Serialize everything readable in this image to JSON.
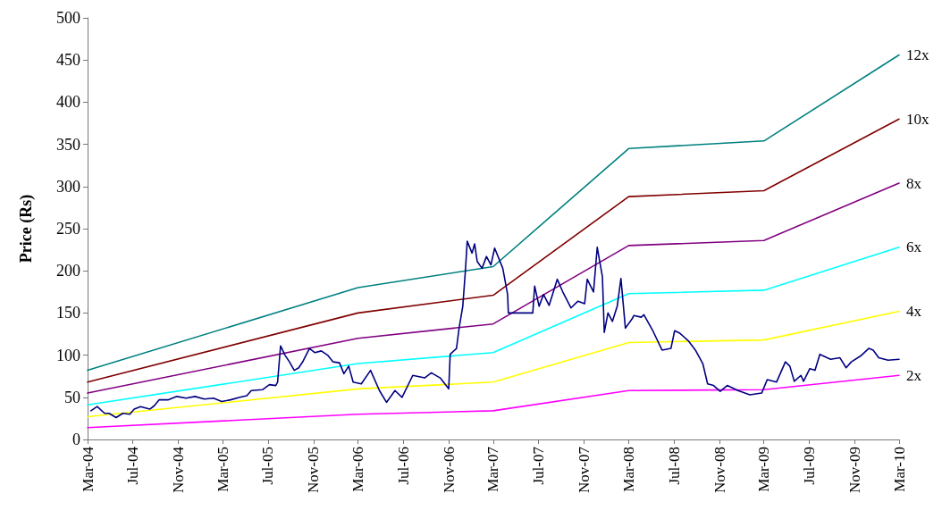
{
  "chart_data": {
    "type": "line",
    "ylabel": "Price (Rs)",
    "xlim": [
      "2004-03",
      "2010-03"
    ],
    "xticks": [
      {
        "value": "2004-03",
        "label": "Mar-04"
      },
      {
        "value": "2004-07",
        "label": "Jul-04"
      },
      {
        "value": "2004-11",
        "label": "Nov-04"
      },
      {
        "value": "2005-03",
        "label": "Mar-05"
      },
      {
        "value": "2005-07",
        "label": "Jul-05"
      },
      {
        "value": "2005-11",
        "label": "Nov-05"
      },
      {
        "value": "2006-03",
        "label": "Mar-06"
      },
      {
        "value": "2006-07",
        "label": "Jul-06"
      },
      {
        "value": "2006-11",
        "label": "Nov-06"
      },
      {
        "value": "2007-03",
        "label": "Mar-07"
      },
      {
        "value": "2007-07",
        "label": "Jul-07"
      },
      {
        "value": "2007-11",
        "label": "Nov-07"
      },
      {
        "value": "2008-03",
        "label": "Mar-08"
      },
      {
        "value": "2008-07",
        "label": "Jul-08"
      },
      {
        "value": "2008-11",
        "label": "Nov-08"
      },
      {
        "value": "2009-03",
        "label": "Mar-09"
      },
      {
        "value": "2009-07",
        "label": "Jul-09"
      },
      {
        "value": "2009-11",
        "label": "Nov-09"
      },
      {
        "value": "2010-03",
        "label": "Mar-10"
      }
    ],
    "ylim": [
      0,
      500
    ],
    "yticks": [
      0,
      50,
      100,
      150,
      200,
      250,
      300,
      350,
      400,
      450,
      500
    ],
    "grid": false,
    "legend": false,
    "marker": "none",
    "line_style": "solid",
    "series": [
      {
        "name": "12x",
        "color": "#008080",
        "x": [
          "2004-03",
          "2006-03",
          "2007-03",
          "2008-03",
          "2009-03",
          "2010-03"
        ],
        "values": [
          82,
          180,
          205,
          345,
          354,
          456
        ]
      },
      {
        "name": "10x",
        "color": "#800000",
        "x": [
          "2004-03",
          "2006-03",
          "2007-03",
          "2008-03",
          "2009-03",
          "2010-03"
        ],
        "values": [
          68,
          150,
          171,
          288,
          295,
          380
        ]
      },
      {
        "name": "8x",
        "color": "#800080",
        "x": [
          "2004-03",
          "2006-03",
          "2007-03",
          "2008-03",
          "2009-03",
          "2010-03"
        ],
        "values": [
          55,
          120,
          137,
          230,
          236,
          304
        ]
      },
      {
        "name": "6x",
        "color": "#00ffff",
        "x": [
          "2004-03",
          "2006-03",
          "2007-03",
          "2008-03",
          "2009-03",
          "2010-03"
        ],
        "values": [
          41,
          90,
          103,
          173,
          177,
          228
        ]
      },
      {
        "name": "4x",
        "color": "#ffff00",
        "x": [
          "2004-03",
          "2006-03",
          "2007-03",
          "2008-03",
          "2009-03",
          "2010-03"
        ],
        "values": [
          27,
          60,
          68,
          115,
          118,
          152
        ]
      },
      {
        "name": "2x",
        "color": "#ff00ff",
        "x": [
          "2004-03",
          "2006-03",
          "2007-03",
          "2008-03",
          "2009-03",
          "2010-03"
        ],
        "values": [
          14,
          30,
          34,
          58,
          59,
          76
        ]
      },
      {
        "color": "#000080",
        "x": [
          "2004-03-10",
          "2004-03-27",
          "2004-04-16",
          "2004-04-28",
          "2004-05-17",
          "2004-06-04",
          "2004-06-23",
          "2004-07-05",
          "2004-07-22",
          "2004-08-16",
          "2004-08-28",
          "2004-09-10",
          "2004-10-04",
          "2004-10-28",
          "2004-11-22",
          "2004-12-16",
          "2005-01-10",
          "2005-02-04",
          "2005-02-26",
          "2005-03-22",
          "2005-04-16",
          "2005-05-05",
          "2005-05-17",
          "2005-06-16",
          "2005-07-05",
          "2005-07-22",
          "2005-07-27",
          "2005-08-04",
          "2005-08-16",
          "2005-08-28",
          "2005-09-10",
          "2005-09-22",
          "2005-10-04",
          "2005-10-21",
          "2005-11-05",
          "2005-11-22",
          "2005-12-09",
          "2005-12-24",
          "2006-01-10",
          "2006-01-22",
          "2006-02-04",
          "2006-02-16",
          "2006-03-10",
          "2006-04-04",
          "2006-04-28",
          "2006-05-17",
          "2006-06-09",
          "2006-06-28",
          "2006-07-27",
          "2006-08-28",
          "2006-09-15",
          "2006-10-09",
          "2006-11-01",
          "2006-11-05",
          "2006-11-22",
          "2006-11-29",
          "2006-12-09",
          "2006-12-16",
          "2006-12-21",
          "2007-01-03",
          "2007-01-10",
          "2007-01-17",
          "2007-01-30",
          "2007-02-11",
          "2007-02-23",
          "2007-03-05",
          "2007-03-27",
          "2007-04-09",
          "2007-04-11",
          "2007-04-21",
          "2007-05-15",
          "2007-06-16",
          "2007-06-21",
          "2007-07-03",
          "2007-07-15",
          "2007-07-30",
          "2007-08-21",
          "2007-09-05",
          "2007-09-27",
          "2007-10-16",
          "2007-11-03",
          "2007-11-10",
          "2007-11-27",
          "2007-12-07",
          "2007-12-21",
          "2007-12-26",
          "2008-01-05",
          "2008-01-17",
          "2008-01-30",
          "2008-02-09",
          "2008-02-21",
          "2008-03-10",
          "2008-03-15",
          "2008-04-04",
          "2008-04-11",
          "2008-05-05",
          "2008-05-30",
          "2008-06-23",
          "2008-07-03",
          "2008-07-17",
          "2008-08-09",
          "2008-08-28",
          "2008-09-17",
          "2008-09-30",
          "2008-10-16",
          "2008-11-03",
          "2008-11-22",
          "2008-12-21",
          "2009-01-22",
          "2009-02-23",
          "2009-03-10",
          "2009-04-04",
          "2009-04-28",
          "2009-05-10",
          "2009-05-22",
          "2009-06-09",
          "2009-06-16",
          "2009-07-03",
          "2009-07-17",
          "2009-07-30",
          "2009-08-28",
          "2009-09-22",
          "2009-10-09",
          "2009-10-23",
          "2009-11-17",
          "2009-12-09",
          "2009-12-21",
          "2010-01-05",
          "2010-01-30",
          "2010-03-01"
        ],
        "values": [
          34,
          39,
          31,
          31,
          26,
          31,
          30,
          36,
          39,
          36,
          40,
          47,
          47,
          51,
          49,
          51,
          48,
          49,
          45,
          47,
          50,
          52,
          58,
          59,
          65,
          64,
          68,
          111,
          100,
          92,
          82,
          85,
          93,
          108,
          103,
          105,
          100,
          92,
          91,
          78,
          87,
          68,
          66,
          82,
          58,
          44,
          58,
          50,
          76,
          73,
          79,
          73,
          60,
          101,
          108,
          132,
          158,
          200,
          235,
          221,
          232,
          211,
          203,
          217,
          207,
          227,
          203,
          172,
          150,
          150,
          150,
          150,
          182,
          158,
          172,
          159,
          190,
          175,
          156,
          164,
          161,
          190,
          175,
          228,
          193,
          127,
          150,
          140,
          158,
          191,
          132,
          143,
          147,
          145,
          148,
          129,
          106,
          108,
          129,
          126,
          117,
          106,
          90,
          66,
          64,
          57,
          64,
          58,
          53,
          55,
          71,
          68,
          92,
          87,
          69,
          76,
          69,
          84,
          82,
          101,
          95,
          97,
          85,
          92,
          99,
          108,
          106,
          97,
          94,
          95
        ]
      }
    ]
  }
}
